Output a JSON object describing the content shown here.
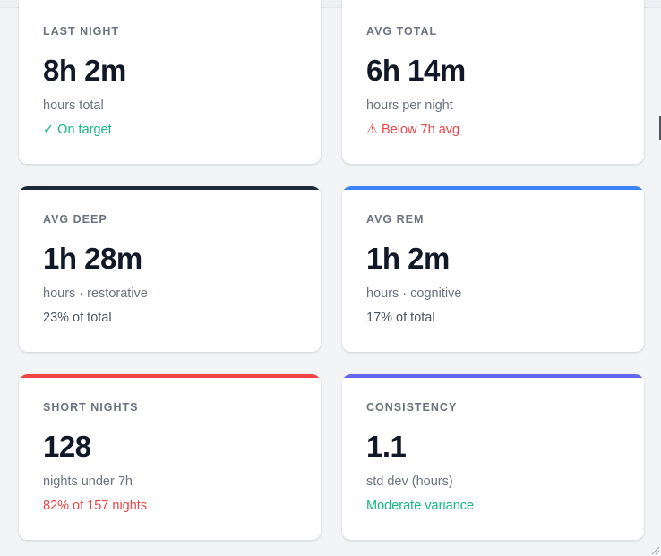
{
  "colors": {
    "accent_deep": "#1e293b",
    "accent_rem": "#3b82f6",
    "accent_short": "#ef4444",
    "accent_consistency": "#6366f1",
    "ok": "#10b981",
    "warn": "#ef4444"
  },
  "cards": [
    {
      "label": "LAST NIGHT",
      "value": "8h 2m",
      "sub": "hours total",
      "note": "✓ On target"
    },
    {
      "label": "AVG TOTAL",
      "value": "6h 14m",
      "sub": "hours per night",
      "note": "⚠ Below 7h avg"
    },
    {
      "label": "AVG DEEP",
      "value": "1h 28m",
      "sub": "hours · restorative",
      "note": "23% of total"
    },
    {
      "label": "AVG REM",
      "value": "1h 2m",
      "sub": "hours · cognitive",
      "note": "17% of total"
    },
    {
      "label": "SHORT NIGHTS",
      "value": "128",
      "sub": "nights under 7h",
      "note": "82% of 157 nights"
    },
    {
      "label": "CONSISTENCY",
      "value": "1.1",
      "sub": "std dev (hours)",
      "note": "Moderate variance"
    }
  ]
}
